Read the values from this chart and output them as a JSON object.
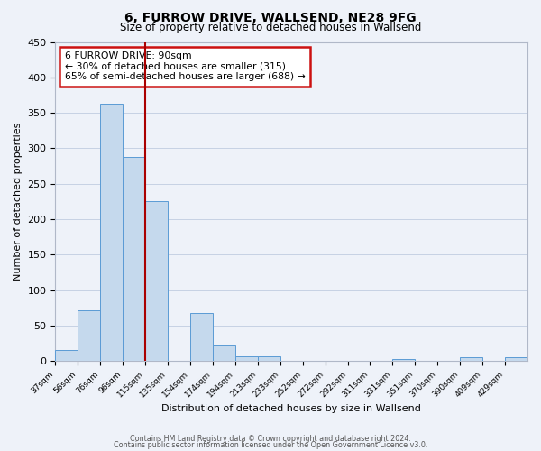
{
  "title": "6, FURROW DRIVE, WALLSEND, NE28 9FG",
  "subtitle": "Size of property relative to detached houses in Wallsend",
  "xlabel": "Distribution of detached houses by size in Wallsend",
  "ylabel": "Number of detached properties",
  "bar_values": [
    15,
    72,
    363,
    288,
    225,
    0,
    67,
    22,
    7,
    6,
    0,
    0,
    0,
    0,
    0,
    3,
    0,
    0,
    5,
    0,
    5
  ],
  "bin_labels": [
    "37sqm",
    "56sqm",
    "76sqm",
    "96sqm",
    "115sqm",
    "135sqm",
    "154sqm",
    "174sqm",
    "194sqm",
    "213sqm",
    "233sqm",
    "252sqm",
    "272sqm",
    "292sqm",
    "311sqm",
    "331sqm",
    "351sqm",
    "370sqm",
    "390sqm",
    "409sqm",
    "429sqm"
  ],
  "bar_color": "#c5d9ed",
  "bar_edge_color": "#5b9bd5",
  "ylim": [
    0,
    450
  ],
  "yticks": [
    0,
    50,
    100,
    150,
    200,
    250,
    300,
    350,
    400,
    450
  ],
  "property_size_idx": 3,
  "vline_color": "#aa0000",
  "annotation_title": "6 FURROW DRIVE: 90sqm",
  "annotation_line1": "← 30% of detached houses are smaller (315)",
  "annotation_line2": "65% of semi-detached houses are larger (688) →",
  "footer_line1": "Contains HM Land Registry data © Crown copyright and database right 2024.",
  "footer_line2": "Contains public sector information licensed under the Open Government Licence v3.0.",
  "bg_color": "#eef2f9"
}
